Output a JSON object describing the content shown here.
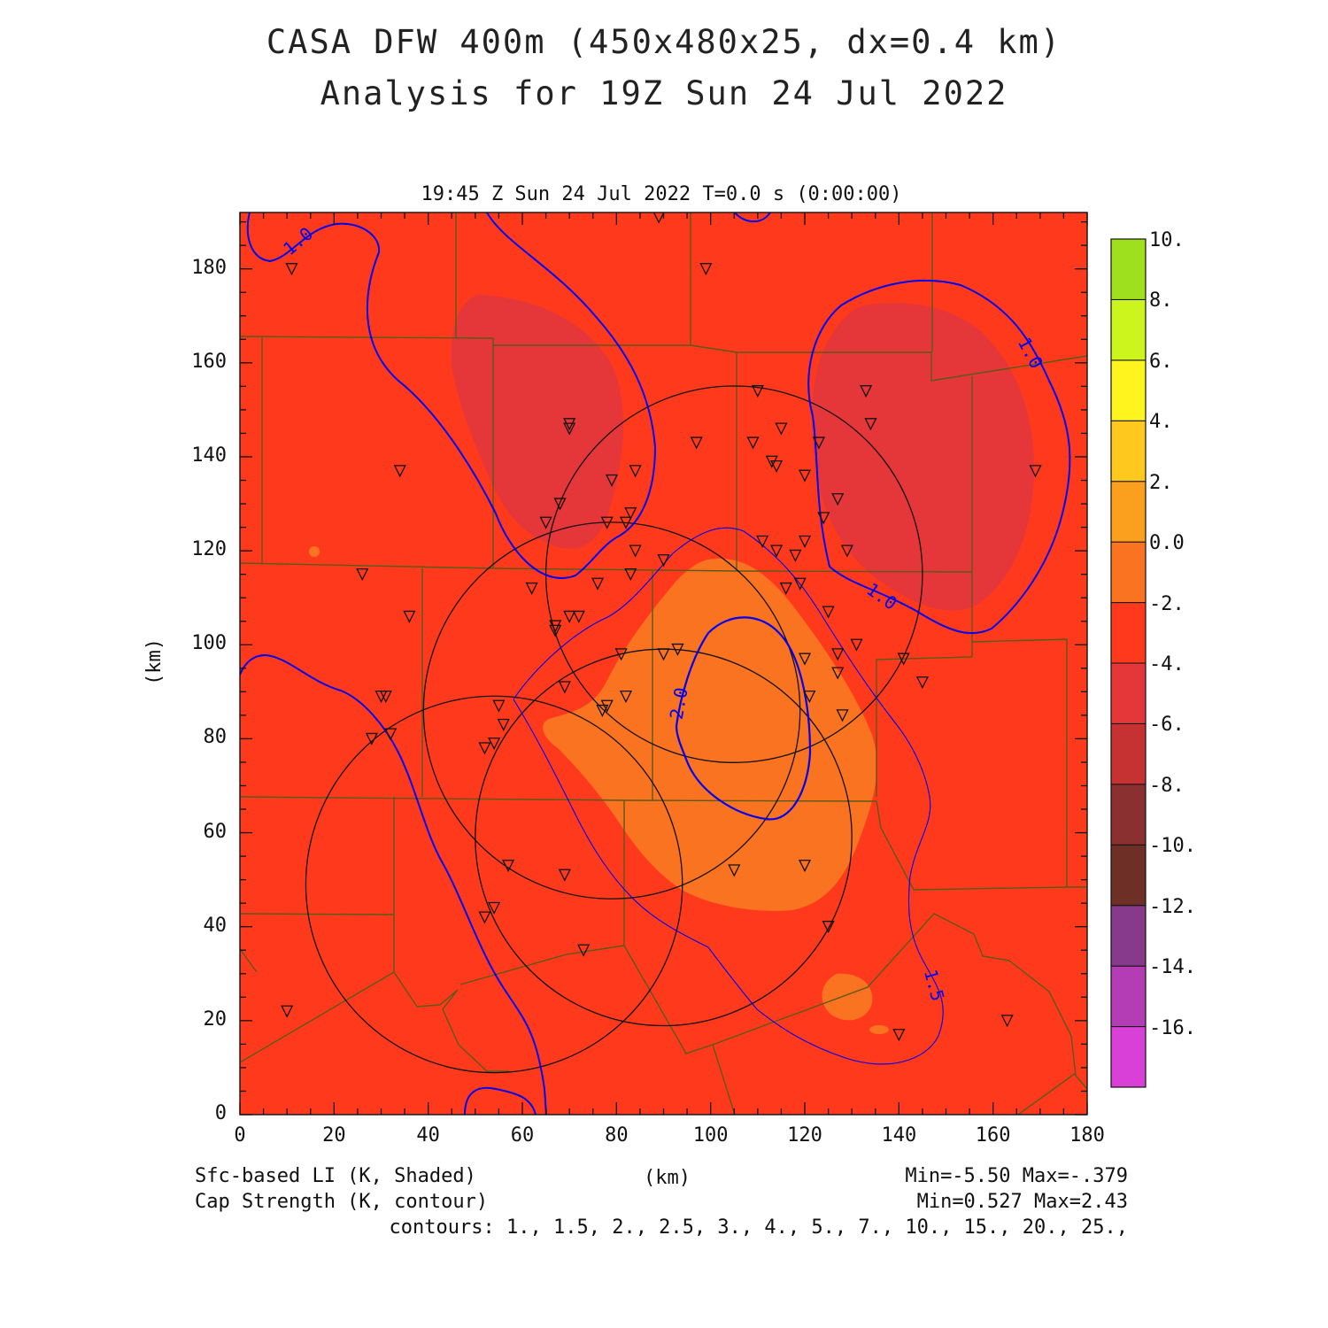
{
  "title": {
    "line1": "CASA DFW 400m (450x480x25, dx=0.4 km)",
    "line2": "Analysis for 19Z Sun 24 Jul 2022"
  },
  "subtitle": "19:45 Z Sun 24 Jul 2022   T=0.0 s (0:00:00)",
  "axes": {
    "x_label": "(km)",
    "y_label": "(km)",
    "x_range": [
      0,
      180
    ],
    "y_range": [
      0,
      192
    ],
    "x_ticks": [
      "0",
      "20",
      "40",
      "60",
      "80",
      "100",
      "120",
      "140",
      "160",
      "180"
    ],
    "y_ticks": [
      "0",
      "20",
      "40",
      "60",
      "80",
      "100",
      "120",
      "140",
      "160",
      "180"
    ]
  },
  "colorbar": {
    "labels": [
      "10.",
      "8.",
      "6.",
      "4.",
      "2.",
      "0.0",
      "-2.",
      "-4.",
      "-6.",
      "-8.",
      "-10.",
      "-12.",
      "-14.",
      "-16."
    ],
    "colors": [
      "#9fe01e",
      "#ccf51e",
      "#fff51e",
      "#ffc81e",
      "#fba01e",
      "#fa7320",
      "#ff3a1c",
      "#e5363a",
      "#c63232",
      "#8b3030",
      "#6e3026",
      "#873a8b",
      "#b43cb4",
      "#d840d8"
    ]
  },
  "legend": {
    "shaded_label": "Sfc-based LI (K, Shaded)",
    "contour_label": "Cap Strength (K, contour)",
    "shaded_minmax": "Min=-5.50 Max=-.379",
    "contour_minmax": "Min=0.527 Max=2.43",
    "contours": "contours: 1., 1.5, 2., 2.5, 3., 4., 5., 7., 10., 15., 20., 25.,"
  },
  "contour_labels": [
    "1.0",
    "1.0",
    "1.0",
    "2.0",
    "1.5"
  ],
  "colors": {
    "background_field": "#ff3a1c",
    "min_li_region": "#e5363a",
    "max_li_region": "#fa7320",
    "contour_line": "#0000ee",
    "county_border": "#5a5a1a",
    "radar_ring": "#111111"
  },
  "chart_data": {
    "type": "map",
    "shaded_field": "Sfc-based LI (K)",
    "contour_field": "Cap Strength (K)",
    "x_range_km": [
      0,
      180
    ],
    "y_range_km": [
      0,
      192
    ],
    "radar_rings": [
      {
        "center_km": [
          105,
          115
        ],
        "radius_km": 40
      },
      {
        "center_km": [
          79,
          86
        ],
        "radius_km": 40
      },
      {
        "center_km": [
          90,
          59
        ],
        "radius_km": 40
      },
      {
        "center_km": [
          54,
          49
        ],
        "radius_km": 40
      }
    ],
    "station_markers_km": [
      [
        89,
        191
      ],
      [
        11,
        180
      ],
      [
        99,
        180
      ],
      [
        133,
        154
      ],
      [
        110,
        154
      ],
      [
        134,
        147
      ],
      [
        70,
        147
      ],
      [
        70,
        146
      ],
      [
        115,
        146
      ],
      [
        97,
        143
      ],
      [
        109,
        143
      ],
      [
        123,
        143
      ],
      [
        34,
        137
      ],
      [
        84,
        137
      ],
      [
        79,
        135
      ],
      [
        120,
        136
      ],
      [
        113,
        139
      ],
      [
        114,
        138
      ],
      [
        169,
        137
      ],
      [
        68,
        130
      ],
      [
        127,
        131
      ],
      [
        65,
        126
      ],
      [
        78,
        126
      ],
      [
        82,
        126
      ],
      [
        83,
        128
      ],
      [
        124,
        127
      ],
      [
        111,
        122
      ],
      [
        114,
        120
      ],
      [
        120,
        122
      ],
      [
        84,
        120
      ],
      [
        118,
        119
      ],
      [
        129,
        120
      ],
      [
        90,
        118
      ],
      [
        26,
        115
      ],
      [
        83,
        115
      ],
      [
        62,
        112
      ],
      [
        76,
        113
      ],
      [
        116,
        112
      ],
      [
        119,
        113
      ],
      [
        36,
        106
      ],
      [
        67,
        104
      ],
      [
        67,
        103
      ],
      [
        70,
        106
      ],
      [
        72,
        106
      ],
      [
        125,
        107
      ],
      [
        131,
        100
      ],
      [
        93,
        99
      ],
      [
        90,
        98
      ],
      [
        81,
        98
      ],
      [
        120,
        97
      ],
      [
        127,
        98
      ],
      [
        141,
        97
      ],
      [
        127,
        94
      ],
      [
        30,
        89
      ],
      [
        31,
        89
      ],
      [
        69,
        91
      ],
      [
        121,
        89
      ],
      [
        82,
        89
      ],
      [
        145,
        92
      ],
      [
        55,
        87
      ],
      [
        77,
        86
      ],
      [
        78,
        87
      ],
      [
        28,
        80
      ],
      [
        32,
        81
      ],
      [
        56,
        83
      ],
      [
        54,
        79
      ],
      [
        52,
        78
      ],
      [
        128,
        85
      ],
      [
        57,
        53
      ],
      [
        69,
        51
      ],
      [
        105,
        52
      ],
      [
        120,
        53
      ],
      [
        54,
        44
      ],
      [
        52,
        42
      ],
      [
        125,
        40
      ],
      [
        73,
        35
      ],
      [
        10,
        22
      ],
      [
        163,
        20
      ],
      [
        140,
        17
      ]
    ]
  }
}
